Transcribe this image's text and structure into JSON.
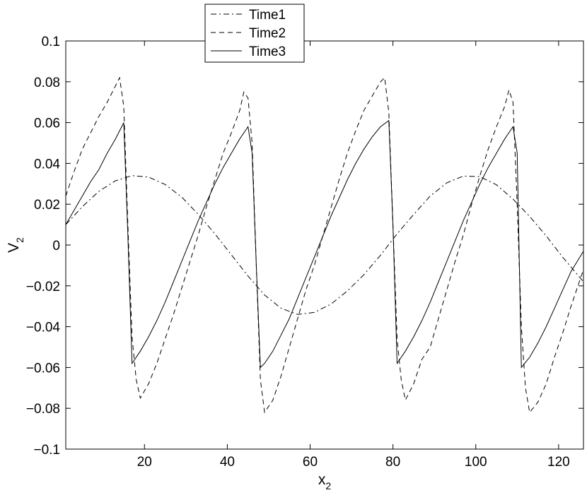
{
  "chart_data": {
    "type": "line",
    "title": "",
    "xlabel": "x",
    "xlabel_sub": "2",
    "ylabel": "V",
    "ylabel_sub": "2",
    "xlim": [
      1,
      126
    ],
    "ylim": [
      -0.1,
      0.1
    ],
    "xticks": [
      20,
      40,
      60,
      80,
      100,
      120
    ],
    "yticks": [
      -0.1,
      -0.08,
      -0.06,
      -0.04,
      -0.02,
      0,
      0.02,
      0.04,
      0.06,
      0.08,
      0.1
    ],
    "ytick_labels": [
      "−0.1",
      "−0.08",
      "−0.06",
      "−0.04",
      "−0.02",
      "0",
      "0.02",
      "0.04",
      "0.06",
      "0.08",
      "0.1"
    ],
    "xtick_labels": [
      "20",
      "40",
      "60",
      "80",
      "100",
      "120"
    ],
    "grid": false,
    "legend_position": "top-center",
    "series": [
      {
        "name": "Time1",
        "style": "dashdot",
        "x": [
          1,
          5,
          9,
          13,
          17,
          21,
          25,
          29,
          33,
          37,
          41,
          45,
          49,
          53,
          57,
          61,
          65,
          69,
          73,
          77,
          81,
          85,
          89,
          93,
          97,
          101,
          105,
          109,
          113,
          117,
          121,
          126
        ],
        "y": [
          0.01,
          0.0188,
          0.0263,
          0.0315,
          0.034,
          0.0333,
          0.0297,
          0.0235,
          0.015,
          0.0055,
          -0.0048,
          -0.0152,
          -0.0245,
          -0.031,
          -0.034,
          -0.033,
          -0.029,
          -0.0225,
          -0.0145,
          -0.005,
          0.0055,
          0.015,
          0.024,
          0.0305,
          0.0338,
          0.0335,
          0.0295,
          0.0225,
          0.014,
          0.0045,
          -0.006,
          -0.018
        ]
      },
      {
        "name": "Time2",
        "style": "dashed",
        "x": [
          1,
          3,
          5,
          7,
          9,
          11,
          13,
          14,
          15,
          16,
          17,
          18,
          19,
          21,
          23,
          25,
          27,
          29,
          31,
          33,
          35,
          37,
          39,
          41,
          43,
          44,
          45,
          46,
          47,
          48,
          49,
          51,
          53,
          55,
          57,
          59,
          61,
          63,
          65,
          67,
          69,
          71,
          73,
          75,
          77,
          78,
          79,
          80,
          81,
          82,
          83,
          85,
          87,
          89,
          91,
          93,
          95,
          97,
          99,
          101,
          103,
          105,
          107,
          108,
          109,
          110,
          111,
          112,
          113,
          115,
          117,
          119,
          121,
          123,
          126
        ],
        "y": [
          0.024,
          0.036,
          0.047,
          0.055,
          0.063,
          0.07,
          0.078,
          0.082,
          0.068,
          0.01,
          -0.045,
          -0.066,
          -0.075,
          -0.068,
          -0.058,
          -0.046,
          -0.034,
          -0.021,
          -0.008,
          0.005,
          0.019,
          0.032,
          0.045,
          0.055,
          0.066,
          0.075,
          0.072,
          0.05,
          -0.01,
          -0.066,
          -0.082,
          -0.076,
          -0.064,
          -0.05,
          -0.036,
          -0.022,
          -0.01,
          0.004,
          0.018,
          0.032,
          0.045,
          0.056,
          0.066,
          0.073,
          0.08,
          0.082,
          0.065,
          0.01,
          -0.046,
          -0.066,
          -0.076,
          -0.068,
          -0.056,
          -0.05,
          -0.036,
          -0.022,
          -0.008,
          0.005,
          0.02,
          0.034,
          0.047,
          0.058,
          0.068,
          0.076,
          0.07,
          0.02,
          -0.04,
          -0.07,
          -0.082,
          -0.077,
          -0.068,
          -0.055,
          -0.043,
          -0.03,
          -0.012
        ]
      },
      {
        "name": "Time3",
        "style": "solid",
        "x": [
          1,
          3,
          5,
          7,
          9,
          11,
          13,
          15,
          16,
          17,
          19,
          21,
          23,
          25,
          27,
          29,
          31,
          33,
          35,
          37,
          39,
          41,
          43,
          45,
          46,
          47,
          48,
          49,
          51,
          53,
          55,
          57,
          59,
          61,
          63,
          65,
          67,
          69,
          71,
          73,
          75,
          77,
          79,
          80,
          81,
          83,
          85,
          87,
          89,
          91,
          93,
          95,
          97,
          99,
          101,
          103,
          105,
          107,
          109,
          110,
          111,
          113,
          115,
          117,
          119,
          121,
          123,
          126
        ],
        "y": [
          0.01,
          0.017,
          0.024,
          0.031,
          0.037,
          0.045,
          0.052,
          0.06,
          0.005,
          -0.058,
          -0.052,
          -0.045,
          -0.037,
          -0.028,
          -0.018,
          -0.008,
          0.002,
          0.012,
          0.021,
          0.03,
          0.038,
          0.045,
          0.052,
          0.058,
          0.045,
          -0.01,
          -0.06,
          -0.058,
          -0.052,
          -0.044,
          -0.036,
          -0.026,
          -0.016,
          -0.006,
          0.004,
          0.014,
          0.023,
          0.032,
          0.04,
          0.047,
          0.053,
          0.058,
          0.061,
          0.01,
          -0.058,
          -0.052,
          -0.045,
          -0.037,
          -0.028,
          -0.018,
          -0.008,
          0.002,
          0.012,
          0.021,
          0.03,
          0.038,
          0.045,
          0.052,
          0.058,
          0.045,
          -0.06,
          -0.055,
          -0.048,
          -0.04,
          -0.031,
          -0.022,
          -0.013,
          -0.003
        ]
      }
    ]
  }
}
